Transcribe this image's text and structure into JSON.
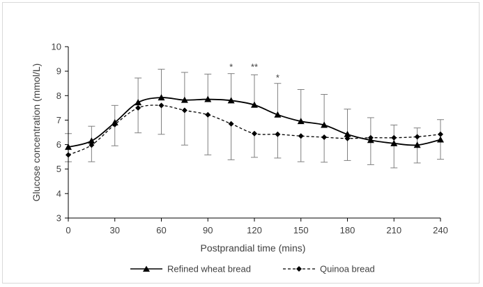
{
  "chart_data": {
    "type": "line",
    "title": "",
    "xlabel": "Postprandial time (mins)",
    "ylabel": "Glucose concentration (mmol/L)",
    "xlim": [
      0,
      240
    ],
    "ylim": [
      3,
      10
    ],
    "xticks": [
      0,
      30,
      60,
      90,
      120,
      150,
      180,
      210,
      240
    ],
    "yticks": [
      3,
      4,
      5,
      6,
      7,
      8,
      9,
      10
    ],
    "grid": false,
    "legend_position": "bottom",
    "x": [
      0,
      15,
      30,
      45,
      60,
      75,
      90,
      105,
      120,
      135,
      150,
      165,
      180,
      195,
      210,
      225,
      240
    ],
    "series": [
      {
        "name": "Refined wheat bread",
        "marker": "triangle",
        "line_style": "solid",
        "values": [
          5.9,
          6.15,
          6.9,
          7.72,
          7.92,
          7.82,
          7.85,
          7.8,
          7.62,
          7.22,
          6.95,
          6.8,
          6.42,
          6.18,
          6.05,
          5.98,
          6.2
        ],
        "error_upper": [
          6.45,
          6.75,
          7.6,
          8.72,
          9.08,
          8.95,
          8.88,
          8.9,
          8.85,
          8.5,
          8.25,
          8.05,
          7.45,
          7.1,
          6.8,
          6.68,
          7.02
        ]
      },
      {
        "name": "Quinoa bread",
        "marker": "diamond",
        "line_style": "dashed",
        "values": [
          5.58,
          5.98,
          6.82,
          7.5,
          7.6,
          7.4,
          7.22,
          6.85,
          6.45,
          6.42,
          6.35,
          6.3,
          6.25,
          6.28,
          6.28,
          6.32,
          6.42
        ],
        "error_lower": [
          5.3,
          5.3,
          5.95,
          6.48,
          6.42,
          5.98,
          5.58,
          5.38,
          5.48,
          5.45,
          5.3,
          5.28,
          5.35,
          5.18,
          5.05,
          5.25,
          5.4
        ]
      }
    ],
    "annotations": [
      {
        "text": "*",
        "x": 105,
        "y": 9.05
      },
      {
        "text": "**",
        "x": 120,
        "y": 9.05
      },
      {
        "text": "*",
        "x": 135,
        "y": 8.6
      }
    ]
  }
}
